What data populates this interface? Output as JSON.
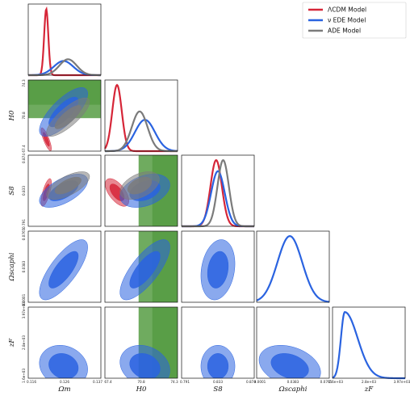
{
  "chart_data": {
    "type": "corner",
    "title": "",
    "parameters": [
      "Ω_m",
      "H0",
      "S8",
      "Ω_scaphi",
      "z_F"
    ],
    "axis_labels": {
      "omega_m": "Ωm",
      "h0": "H0",
      "s8": "S8",
      "omega_scaphi": "Ωscaphi",
      "z_f": "zF"
    },
    "ranges": {
      "omega_m": [
        0.116,
        0.137
      ],
      "h0": [
        67.4,
        74.3
      ],
      "s8": [
        0.791,
        0.874
      ],
      "omega_scaphi": [
        0.0001,
        0.0765
      ],
      "z_f": [
        1600,
        3970
      ]
    },
    "ticks": {
      "omega_m": [
        "0.116",
        "0.126",
        "0.137"
      ],
      "h0": [
        "67.4",
        "70.8",
        "74.3"
      ],
      "s8": [
        "0.791",
        "0.833",
        "0.874"
      ],
      "omega_scaphi": [
        "0.0001",
        "0.0383",
        "0.0765"
      ],
      "z_f": [
        "1.6e+03",
        "2.8e+03",
        "3.97e+03"
      ]
    },
    "legend": {
      "position": "top-right",
      "entries": [
        {
          "name": "ΛCDM Model",
          "color": "#d62638"
        },
        {
          "name": "ν EDE Model",
          "color": "#2a63e0"
        },
        {
          "name": "ADE Model",
          "color": "#7b7b7b"
        }
      ]
    },
    "series": [
      {
        "name": "ΛCDM Model",
        "color": "#d62638",
        "params": {
          "omega_m": {
            "mean": 0.1212,
            "sd": 0.0006
          },
          "h0": {
            "mean": 68.55,
            "sd": 0.45
          },
          "s8": {
            "mean": 0.8305,
            "sd": 0.0065
          }
        },
        "corr": [
          [
            "omega_m",
            "h0",
            -0.82
          ],
          [
            "omega_m",
            "s8",
            0.7
          ],
          [
            "h0",
            "s8",
            -0.6
          ]
        ]
      },
      {
        "name": "ν EDE Model",
        "color": "#2a63e0",
        "params": {
          "omega_m": {
            "mean": 0.1262,
            "sd": 0.0028
          },
          "h0": {
            "mean": 71.2,
            "sd": 0.95
          },
          "s8": {
            "mean": 0.8325,
            "sd": 0.0078
          },
          "omega_scaphi": {
            "mean": 0.035,
            "sd": 0.013
          },
          "z_f": {
            "mean": 2000,
            "sd": 280
          }
        },
        "corr": [
          [
            "omega_m",
            "h0",
            0.75
          ],
          [
            "omega_m",
            "s8",
            0.6
          ],
          [
            "h0",
            "s8",
            0.35
          ],
          [
            "omega_m",
            "omega_scaphi",
            0.75
          ],
          [
            "h0",
            "omega_scaphi",
            0.75
          ],
          [
            "s8",
            "omega_scaphi",
            0.2
          ],
          [
            "omega_m",
            "z_f",
            -0.15
          ],
          [
            "h0",
            "z_f",
            -0.2
          ],
          [
            "s8",
            "z_f",
            0.0
          ],
          [
            "omega_scaphi",
            "z_f",
            -0.3
          ]
        ]
      },
      {
        "name": "ADE Model",
        "color": "#7b7b7b",
        "params": {
          "omega_m": {
            "mean": 0.1275,
            "sd": 0.0025
          },
          "h0": {
            "mean": 70.7,
            "sd": 0.75
          },
          "s8": {
            "mean": 0.8385,
            "sd": 0.0065
          }
        },
        "corr": [
          [
            "omega_m",
            "h0",
            0.8
          ],
          [
            "omega_m",
            "s8",
            0.65
          ],
          [
            "h0",
            "s8",
            0.45
          ]
        ]
      }
    ],
    "h0_band": {
      "color": "#3f8f2a",
      "center": 73.2,
      "sigma": 1.3
    }
  }
}
